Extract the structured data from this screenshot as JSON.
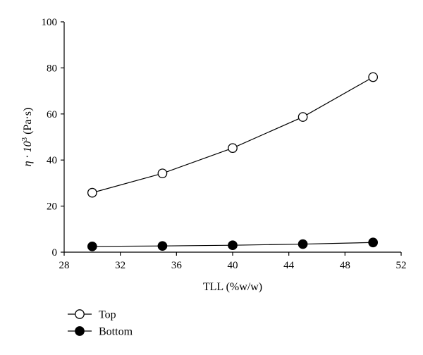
{
  "chart_data": {
    "type": "line",
    "title": "",
    "xlabel": "TLL (%w/w)",
    "ylabel": {
      "main": "η · 10",
      "superscript": "3",
      "unit": " (Pa·s)"
    },
    "xlim": [
      28,
      52
    ],
    "ylim": [
      0,
      100
    ],
    "xticks": [
      28,
      32,
      36,
      40,
      44,
      48,
      52
    ],
    "yticks": [
      0,
      20,
      40,
      60,
      80,
      100
    ],
    "grid": false,
    "legend_position": "below-left",
    "x": [
      30,
      35,
      40,
      45,
      50
    ],
    "series": [
      {
        "name": "Top",
        "marker": "open-circle",
        "values": [
          25.8,
          34.2,
          45.2,
          58.7,
          76.0
        ],
        "errors": [
          1.5,
          1.5,
          1.7,
          1.5,
          1.5
        ]
      },
      {
        "name": "Bottom",
        "marker": "filled-circle",
        "values": [
          2.5,
          2.7,
          3.0,
          3.5,
          4.2
        ],
        "errors": [
          1.2,
          1.2,
          1.2,
          1.3,
          1.4
        ]
      }
    ]
  }
}
